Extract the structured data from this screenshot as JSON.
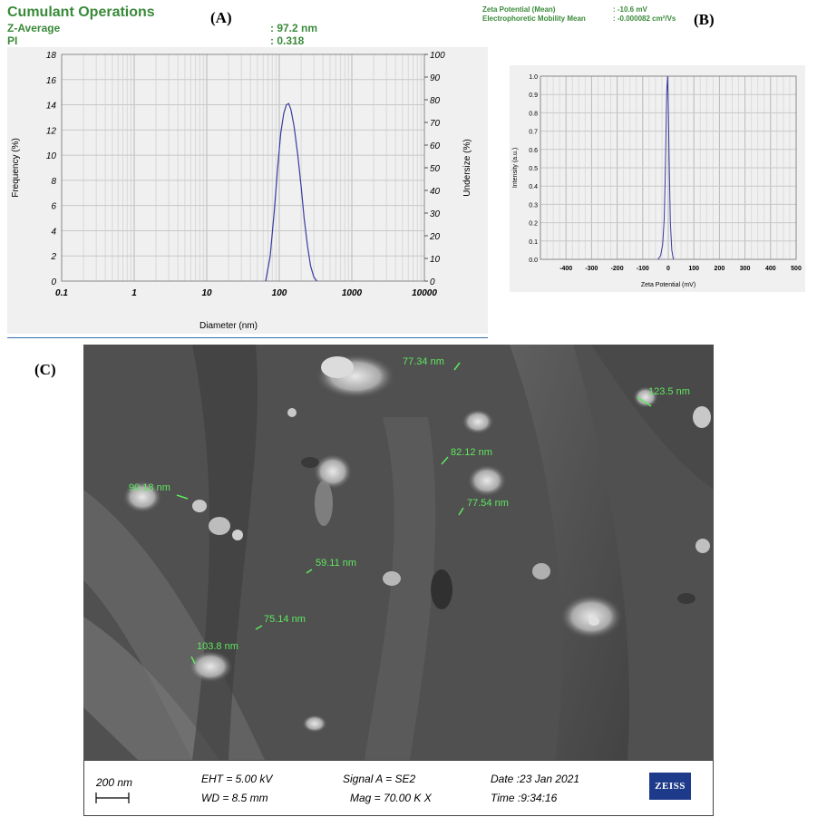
{
  "header": {
    "title": "Cumulant Operations",
    "z_average_label": "Z-Average",
    "z_average_value": ":  97.2 nm",
    "pi_label": "PI",
    "pi_value": ":  0.318"
  },
  "zeta_header": {
    "potential_label": "Zeta Potential (Mean)",
    "potential_value": ":  -10.6 mV",
    "mobility_label": "Electrophoretic Mobility Mean",
    "mobility_value": ":  -0.000082 cm²/Vs"
  },
  "panels": {
    "a": "(A)",
    "b": "(B)",
    "c": "(C)"
  },
  "colors": {
    "accent_green": "#3a8a3a",
    "curve_blue": "#3a3aa0",
    "measure_green": "#5ee85e",
    "zeiss_blue": "#1e3a8a"
  },
  "chart_data": [
    {
      "type": "line",
      "xlabel": "Diameter (nm)",
      "ylabel": "Frequency (%)",
      "y2label": "Undersize (%)",
      "xscale": "log",
      "xlim": [
        0.1,
        10000
      ],
      "ylim": [
        0,
        18
      ],
      "y2lim": [
        0,
        100
      ],
      "x_ticks": [
        "0.1",
        "1",
        "10",
        "100",
        "1000",
        "10000"
      ],
      "y_ticks": [
        "0",
        "2",
        "4",
        "6",
        "8",
        "10",
        "12",
        "14",
        "16",
        "18"
      ],
      "y2_ticks": [
        "0",
        "10",
        "20",
        "30",
        "40",
        "50",
        "60",
        "70",
        "80",
        "90",
        "100"
      ],
      "grid": true,
      "series": [
        {
          "x": [
            65,
            75,
            85,
            95,
            105,
            115,
            125,
            135,
            145,
            160,
            180,
            200,
            220,
            245,
            270,
            300,
            330
          ],
          "y": [
            0,
            2,
            5.5,
            9,
            11.8,
            13.3,
            14,
            14.1,
            13.6,
            12.3,
            10,
            7.5,
            5,
            2.8,
            1.2,
            0.3,
            0
          ]
        }
      ]
    },
    {
      "type": "line",
      "xlabel": "Zeta Potential (mV)",
      "ylabel": "Intensity (a.u.)",
      "xlim": [
        -500,
        500
      ],
      "ylim": [
        0,
        1.0
      ],
      "x_ticks": [
        "-400",
        "-300",
        "-200",
        "-100",
        "0",
        "100",
        "200",
        "300",
        "400",
        "500"
      ],
      "y_ticks": [
        "0.0",
        "0.1",
        "0.2",
        "0.3",
        "0.4",
        "0.5",
        "0.6",
        "0.7",
        "0.8",
        "0.9",
        "1.0"
      ],
      "grid": true,
      "series": [
        {
          "x": [
            -40,
            -30,
            -22,
            -16,
            -12,
            -9,
            -6,
            -3,
            0,
            4,
            8,
            14,
            20
          ],
          "y": [
            0,
            0.02,
            0.08,
            0.22,
            0.45,
            0.7,
            0.92,
            1.0,
            0.85,
            0.5,
            0.2,
            0.05,
            0
          ]
        }
      ]
    }
  ],
  "sem": {
    "measurements": [
      "77.34 nm",
      "123.5 nm",
      "82.12 nm",
      "90.18 nm",
      "77.54 nm",
      "59.11 nm",
      "75.14 nm",
      "103.8 nm"
    ],
    "scale_label": "200 nm",
    "eht": "EHT =  5.00 kV",
    "wd": "WD =  8.5 mm",
    "signal": "Signal A = SE2",
    "mag": "Mag =   70.00 K X",
    "date": "Date :23 Jan 2021",
    "time": "Time :9:34:16",
    "brand": "ZEISS"
  }
}
